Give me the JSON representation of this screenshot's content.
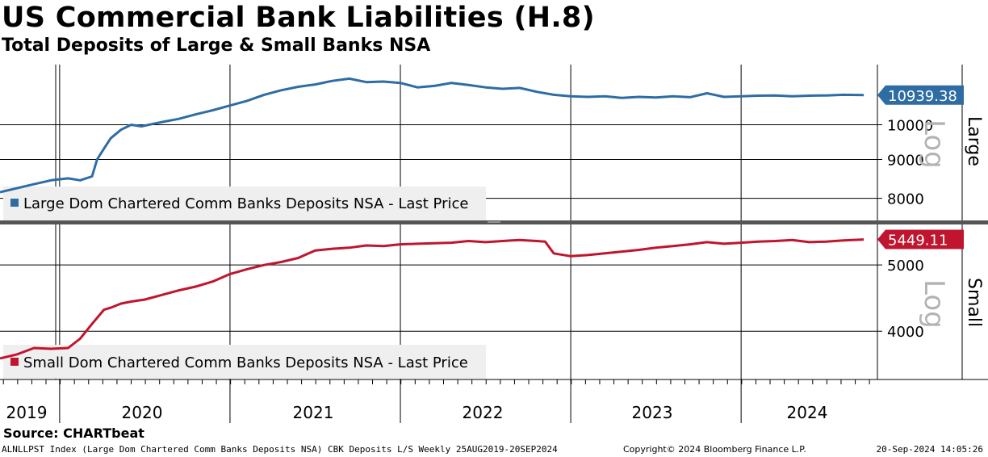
{
  "header": {
    "title": "US Commercial Bank Liabilities (H.8)",
    "subtitle": "Total Deposits of Large & Small Banks NSA"
  },
  "footer": {
    "source": "Source: CHARTbeat",
    "index_info": "ALNLLPST Index (Large Dom Chartered Comm Banks Deposits NSA) CBK Deposits L/S  Weekly 25AUG2019-20SEP2024",
    "copyright": "Copyright© 2024 Bloomberg Finance L.P.",
    "timestamp": "20-Sep-2024 14:05:26"
  },
  "colors": {
    "large": "#2e6da4",
    "small": "#c0152f",
    "grid": "#000000",
    "divider": "#555555",
    "log_label": "#b3b3b3"
  },
  "chart_data": [
    {
      "type": "line",
      "name": "Large",
      "axis_side_label": "Large",
      "scale_label": "Log",
      "legend": "Large Dom Chartered Comm Banks Deposits NSA - Last Price",
      "last_value": 10939.38,
      "last_value_label": "10939.38",
      "yscale": "log",
      "ylim": [
        7500,
        12000
      ],
      "yticks": [
        8000,
        9000,
        10000
      ],
      "ytick_labels": [
        "8000",
        "9000",
        "10000"
      ],
      "x": [
        2019.65,
        2019.75,
        2019.85,
        2019.95,
        2020.05,
        2020.12,
        2020.19,
        2020.22,
        2020.26,
        2020.3,
        2020.36,
        2020.42,
        2020.48,
        2020.55,
        2020.62,
        2020.7,
        2020.8,
        2020.9,
        2021.0,
        2021.1,
        2021.2,
        2021.3,
        2021.4,
        2021.5,
        2021.6,
        2021.7,
        2021.8,
        2021.9,
        2022.0,
        2022.1,
        2022.2,
        2022.3,
        2022.4,
        2022.5,
        2022.6,
        2022.7,
        2022.8,
        2022.9,
        2023.0,
        2023.1,
        2023.2,
        2023.3,
        2023.4,
        2023.5,
        2023.6,
        2023.7,
        2023.8,
        2023.9,
        2024.0,
        2024.1,
        2024.2,
        2024.3,
        2024.4,
        2024.5,
        2024.6,
        2024.72
      ],
      "values": [
        8150,
        8250,
        8350,
        8450,
        8500,
        8450,
        8550,
        9000,
        9300,
        9600,
        9850,
        10000,
        9950,
        10030,
        10100,
        10180,
        10320,
        10450,
        10600,
        10750,
        10950,
        11100,
        11220,
        11300,
        11420,
        11500,
        11380,
        11400,
        11350,
        11200,
        11250,
        11350,
        11280,
        11200,
        11150,
        11180,
        11050,
        10950,
        10900,
        10880,
        10900,
        10850,
        10880,
        10860,
        10900,
        10870,
        11000,
        10880,
        10900,
        10920,
        10930,
        10900,
        10920,
        10930,
        10950,
        10939.38
      ]
    },
    {
      "type": "line",
      "name": "Small",
      "axis_side_label": "Small",
      "scale_label": "Log",
      "legend": "Small Dom Chartered Comm Banks Deposits NSA - Last Price",
      "last_value": 5449.11,
      "last_value_label": "5449.11",
      "yscale": "log",
      "ylim": [
        3400,
        5700
      ],
      "yticks": [
        4000,
        5000
      ],
      "ytick_labels": [
        "4000",
        "5000"
      ],
      "x": [
        2019.65,
        2019.75,
        2019.85,
        2019.95,
        2020.05,
        2020.12,
        2020.19,
        2020.26,
        2020.3,
        2020.36,
        2020.42,
        2020.5,
        2020.6,
        2020.7,
        2020.8,
        2020.9,
        2021.0,
        2021.1,
        2021.2,
        2021.3,
        2021.4,
        2021.5,
        2021.6,
        2021.7,
        2021.8,
        2021.9,
        2022.0,
        2022.1,
        2022.2,
        2022.3,
        2022.4,
        2022.5,
        2022.6,
        2022.7,
        2022.8,
        2022.85,
        2022.9,
        2023.0,
        2023.1,
        2023.2,
        2023.3,
        2023.4,
        2023.5,
        2023.6,
        2023.7,
        2023.8,
        2023.9,
        2024.0,
        2024.1,
        2024.2,
        2024.3,
        2024.4,
        2024.5,
        2024.6,
        2024.72
      ],
      "values": [
        3650,
        3700,
        3780,
        3770,
        3780,
        3900,
        4100,
        4300,
        4330,
        4390,
        4420,
        4450,
        4520,
        4590,
        4650,
        4730,
        4850,
        4930,
        5000,
        5050,
        5120,
        5250,
        5280,
        5300,
        5340,
        5330,
        5360,
        5370,
        5380,
        5390,
        5420,
        5400,
        5420,
        5440,
        5420,
        5410,
        5200,
        5150,
        5170,
        5200,
        5230,
        5260,
        5300,
        5330,
        5360,
        5400,
        5370,
        5390,
        5410,
        5420,
        5440,
        5400,
        5410,
        5430,
        5449.11
      ]
    }
  ],
  "x_axis": {
    "start": 2019.65,
    "end": 2024.8,
    "year_labels": [
      "2019",
      "2020",
      "2021",
      "2022",
      "2023",
      "2024"
    ],
    "year_dividers": [
      2020,
      2021,
      2022,
      2023,
      2024
    ]
  }
}
